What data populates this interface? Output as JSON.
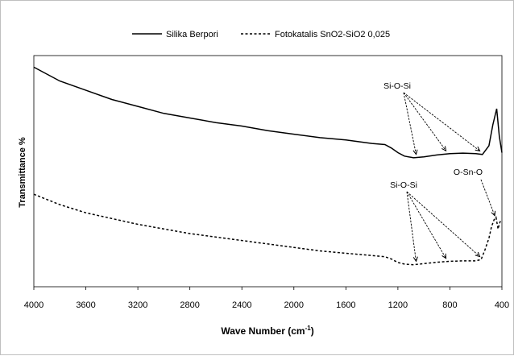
{
  "chart_data": {
    "type": "line",
    "xlabel_main": "Wave Number (cm",
    "xlabel_sup": "-1",
    "xlabel_end": ")",
    "ylabel": "Transmittance %",
    "xlim": [
      4000,
      400
    ],
    "x_reversed": true,
    "x_ticks": [
      "4000",
      "3600",
      "3200",
      "2800",
      "2400",
      "2000",
      "1600",
      "1200",
      "800",
      "400"
    ],
    "grid": false,
    "legend_position": "top",
    "series": [
      {
        "name": "Silika Berpori",
        "style": "solid",
        "color": "#000000",
        "points": [
          [
            4000,
            95
          ],
          [
            3800,
            89
          ],
          [
            3600,
            85
          ],
          [
            3400,
            81
          ],
          [
            3200,
            78
          ],
          [
            3000,
            75
          ],
          [
            2800,
            73
          ],
          [
            2600,
            71
          ],
          [
            2400,
            69.5
          ],
          [
            2200,
            67.5
          ],
          [
            2000,
            66
          ],
          [
            1800,
            64.5
          ],
          [
            1600,
            63.5
          ],
          [
            1400,
            62
          ],
          [
            1300,
            61.5
          ],
          [
            1250,
            60
          ],
          [
            1200,
            58
          ],
          [
            1150,
            56.5
          ],
          [
            1080,
            55.8
          ],
          [
            1000,
            56.2
          ],
          [
            900,
            57
          ],
          [
            800,
            57.6
          ],
          [
            700,
            57.8
          ],
          [
            600,
            57.6
          ],
          [
            550,
            57.2
          ],
          [
            500,
            61
          ],
          [
            470,
            70
          ],
          [
            440,
            77
          ],
          [
            420,
            65
          ],
          [
            400,
            58
          ]
        ]
      },
      {
        "name": "Fotokatalis SnO2-SiO2 0,025",
        "style": "dashed",
        "color": "#000000",
        "points": [
          [
            4000,
            40
          ],
          [
            3800,
            35.5
          ],
          [
            3600,
            32
          ],
          [
            3400,
            29.5
          ],
          [
            3200,
            27
          ],
          [
            3000,
            25
          ],
          [
            2800,
            23
          ],
          [
            2600,
            21.5
          ],
          [
            2400,
            20
          ],
          [
            2200,
            18.5
          ],
          [
            2000,
            17
          ],
          [
            1800,
            15.5
          ],
          [
            1600,
            14.5
          ],
          [
            1400,
            13.5
          ],
          [
            1300,
            13
          ],
          [
            1250,
            12
          ],
          [
            1200,
            10.5
          ],
          [
            1150,
            9.8
          ],
          [
            1080,
            9.5
          ],
          [
            1000,
            10
          ],
          [
            900,
            10.6
          ],
          [
            800,
            11
          ],
          [
            700,
            11.2
          ],
          [
            600,
            11.2
          ],
          [
            560,
            11.8
          ],
          [
            530,
            16
          ],
          [
            500,
            21
          ],
          [
            480,
            26
          ],
          [
            460,
            29
          ],
          [
            445,
            30
          ],
          [
            430,
            25
          ],
          [
            415,
            28
          ],
          [
            400,
            29
          ]
        ]
      }
    ],
    "annotations": [
      {
        "text": "Si-O-Si",
        "targets_x": [
          1060,
          830,
          570
        ]
      },
      {
        "text": "Si-O-Si",
        "targets_x": [
          1060,
          830,
          570
        ]
      },
      {
        "text": "O-Sn-O",
        "targets_x": [
          455
        ]
      }
    ]
  }
}
